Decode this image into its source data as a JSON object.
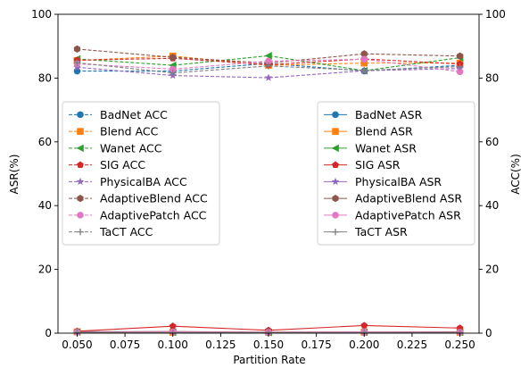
{
  "chart_data": {
    "type": "line",
    "x": [
      0.05,
      0.1,
      0.15,
      0.2,
      0.25
    ],
    "xlabel": "Partition Rate",
    "ylabel_left": "ASR(%)",
    "ylabel_right": "ACC(%)",
    "xlim": [
      0.04,
      0.26
    ],
    "ylim_left": [
      0,
      100
    ],
    "ylim_right": [
      0,
      100
    ],
    "xticks": [
      "0.050",
      "0.075",
      "0.100",
      "0.125",
      "0.150",
      "0.175",
      "0.200",
      "0.225",
      "0.250"
    ],
    "yticks_left": [
      "0",
      "20",
      "40",
      "60",
      "80",
      "100"
    ],
    "yticks_right": [
      "0",
      "20",
      "40",
      "60",
      "80",
      "100"
    ],
    "grid": false,
    "acc_series": [
      {
        "name": "BadNet ACC",
        "marker": "circle",
        "color": "#1f77b4",
        "values": [
          82.2,
          82.2,
          84.6,
          82.2,
          84.0
        ]
      },
      {
        "name": "Blend ACC",
        "marker": "square",
        "color": "#ff7f0e",
        "values": [
          85.5,
          86.9,
          84.0,
          84.7,
          84.7
        ]
      },
      {
        "name": "Wanet ACC",
        "marker": "triangle-left",
        "color": "#2ca02c",
        "values": [
          86.0,
          84.0,
          87.0,
          82.3,
          86.4
        ]
      },
      {
        "name": "SIG ACC",
        "marker": "pentagon",
        "color": "#d62728",
        "values": [
          85.6,
          86.2,
          84.2,
          86.0,
          84.4
        ]
      },
      {
        "name": "PhysicalBA ACC",
        "marker": "star",
        "color": "#9467bd",
        "values": [
          83.4,
          80.8,
          80.1,
          82.3,
          83.0
        ]
      },
      {
        "name": "AdaptiveBlend ACC",
        "marker": "hexagon",
        "color": "#8c564b",
        "values": [
          89.1,
          86.5,
          84.7,
          87.6,
          86.9
        ]
      },
      {
        "name": "AdaptivePatch ACC",
        "marker": "circle",
        "color": "#e377c2",
        "values": [
          84.5,
          82.8,
          85.3,
          85.9,
          82.0
        ]
      },
      {
        "name": "TaCT ACC",
        "marker": "plus",
        "color": "#7f7f7f",
        "values": [
          84.8,
          81.6,
          83.8,
          82.4,
          83.6
        ]
      }
    ],
    "asr_series": [
      {
        "name": "BadNet ASR",
        "marker": "circle",
        "color": "#1f77b4",
        "values": [
          0.5,
          0.3,
          0.2,
          0.3,
          0.3
        ]
      },
      {
        "name": "Blend ASR",
        "marker": "square",
        "color": "#ff7f0e",
        "values": [
          0.4,
          0.3,
          0.3,
          0.3,
          0.3
        ]
      },
      {
        "name": "Wanet ASR",
        "marker": "triangle-left",
        "color": "#2ca02c",
        "values": [
          0.4,
          0.3,
          0.2,
          0.3,
          0.3
        ]
      },
      {
        "name": "SIG ASR",
        "marker": "pentagon",
        "color": "#d62728",
        "values": [
          0.6,
          2.2,
          0.9,
          2.4,
          1.6
        ]
      },
      {
        "name": "PhysicalBA ASR",
        "marker": "star",
        "color": "#9467bd",
        "values": [
          0.3,
          0.2,
          0.2,
          0.2,
          0.2
        ]
      },
      {
        "name": "AdaptiveBlend ASR",
        "marker": "hexagon",
        "color": "#8c564b",
        "values": [
          0.4,
          0.5,
          0.3,
          0.4,
          0.4
        ]
      },
      {
        "name": "AdaptivePatch ASR",
        "marker": "circle",
        "color": "#e377c2",
        "values": [
          0.3,
          0.4,
          0.3,
          0.4,
          0.3
        ]
      },
      {
        "name": "TaCT ASR",
        "marker": "plus",
        "color": "#7f7f7f",
        "values": [
          0.2,
          0.2,
          0.2,
          0.2,
          0.2
        ]
      }
    ],
    "legend_acc_placement": "center-left",
    "legend_asr_placement": "center-right"
  }
}
